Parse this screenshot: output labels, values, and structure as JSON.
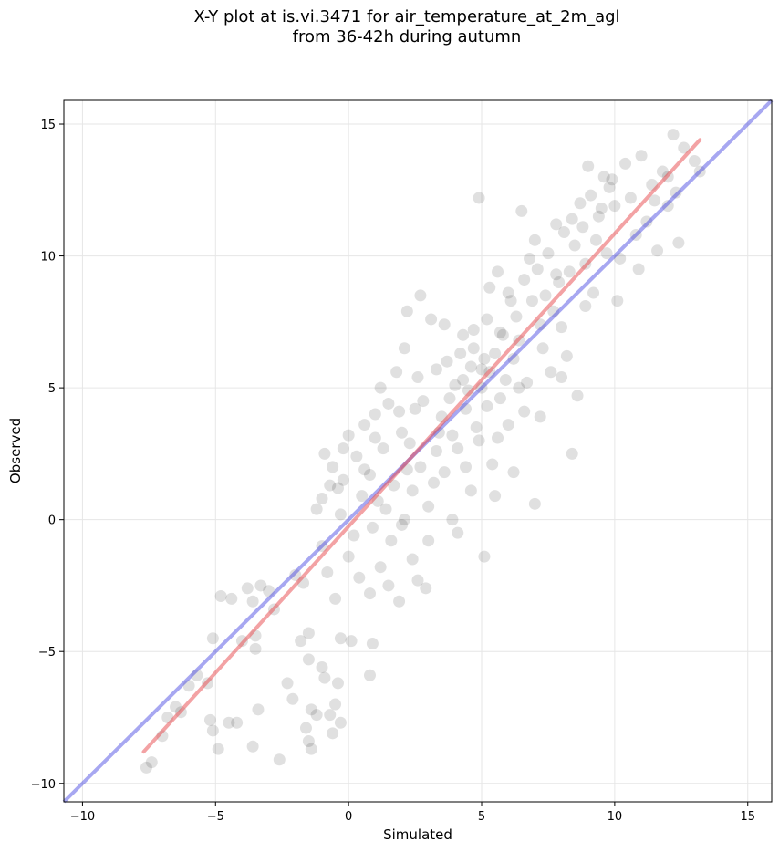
{
  "chart_data": {
    "type": "scatter",
    "title": "X-Y plot at is.vi.3471 for air_temperature_at_2m_agl",
    "subtitle": "from 36-42h during autumn",
    "xlabel": "Simulated",
    "ylabel": "Observed",
    "xlim": [
      -10.7,
      15.9
    ],
    "ylim": [
      -10.7,
      15.9
    ],
    "xticks": [
      -10,
      -5,
      0,
      5,
      10,
      15
    ],
    "yticks": [
      -10,
      -5,
      0,
      5,
      10,
      15
    ],
    "xtick_labels": [
      "−10",
      "−5",
      "0",
      "5",
      "10",
      "15"
    ],
    "ytick_labels": [
      "−10",
      "−5",
      "0",
      "5",
      "10",
      "15"
    ],
    "grid": true,
    "colors": {
      "points": "#000000",
      "fit_line": "#e8454a",
      "identity_line": "#3b3bdf"
    },
    "fit_line": {
      "x": [
        -7.7,
        13.2
      ],
      "y": [
        -8.8,
        14.4
      ]
    },
    "identity_line": {
      "x": [
        -10.7,
        15.9
      ],
      "y": [
        -10.7,
        15.9
      ]
    },
    "points": [
      [
        -7.6,
        -9.4
      ],
      [
        -7.4,
        -9.2
      ],
      [
        -7.0,
        -8.2
      ],
      [
        -6.8,
        -7.5
      ],
      [
        -6.5,
        -7.1
      ],
      [
        -6.3,
        -7.3
      ],
      [
        -6.0,
        -6.3
      ],
      [
        -5.7,
        -5.9
      ],
      [
        -5.3,
        -6.2
      ],
      [
        -5.2,
        -7.6
      ],
      [
        -5.1,
        -8.0
      ],
      [
        -4.9,
        -8.7
      ],
      [
        -5.1,
        -4.5
      ],
      [
        -4.8,
        -2.9
      ],
      [
        -4.4,
        -3.0
      ],
      [
        -4.5,
        -7.7
      ],
      [
        -4.2,
        -7.7
      ],
      [
        -4.0,
        -4.6
      ],
      [
        -3.8,
        -2.6
      ],
      [
        -3.6,
        -3.1
      ],
      [
        -3.5,
        -4.4
      ],
      [
        -3.5,
        -4.9
      ],
      [
        -3.4,
        -7.2
      ],
      [
        -3.6,
        -8.6
      ],
      [
        -3.3,
        -2.5
      ],
      [
        -3.0,
        -2.7
      ],
      [
        -2.8,
        -3.4
      ],
      [
        -2.6,
        -9.1
      ],
      [
        -2.3,
        -6.2
      ],
      [
        -2.1,
        -6.8
      ],
      [
        -2.0,
        -2.1
      ],
      [
        -1.7,
        -2.4
      ],
      [
        -1.8,
        -4.6
      ],
      [
        -1.5,
        -5.3
      ],
      [
        -1.4,
        -7.2
      ],
      [
        -1.6,
        -7.9
      ],
      [
        -1.5,
        -8.4
      ],
      [
        -1.4,
        -8.7
      ],
      [
        -1.2,
        -7.4
      ],
      [
        -1.0,
        -5.6
      ],
      [
        -0.9,
        -6.0
      ],
      [
        -0.7,
        -7.4
      ],
      [
        -0.5,
        -7.0
      ],
      [
        -0.4,
        -6.2
      ],
      [
        -0.3,
        -7.7
      ],
      [
        -0.6,
        -8.1
      ],
      [
        -0.8,
        -2.0
      ],
      [
        -0.5,
        -3.0
      ],
      [
        -0.3,
        -4.5
      ],
      [
        0.1,
        -4.6
      ],
      [
        0.8,
        -5.9
      ],
      [
        0.8,
        -2.8
      ],
      [
        0.9,
        -4.7
      ],
      [
        -1.5,
        -4.3
      ],
      [
        -1.0,
        -1.0
      ],
      [
        -1.0,
        0.8
      ],
      [
        -0.9,
        2.5
      ],
      [
        -0.6,
        2.0
      ],
      [
        -0.4,
        1.2
      ],
      [
        -0.2,
        2.7
      ],
      [
        0.0,
        3.2
      ],
      [
        0.3,
        2.4
      ],
      [
        0.6,
        3.6
      ],
      [
        0.8,
        1.7
      ],
      [
        1.0,
        4.0
      ],
      [
        1.3,
        2.7
      ],
      [
        1.1,
        0.7
      ],
      [
        1.5,
        4.4
      ],
      [
        1.8,
        5.6
      ],
      [
        2.0,
        3.3
      ],
      [
        2.1,
        6.5
      ],
      [
        2.2,
        7.9
      ],
      [
        2.6,
        5.4
      ],
      [
        2.7,
        8.5
      ],
      [
        2.8,
        4.5
      ],
      [
        3.1,
        7.6
      ],
      [
        3.3,
        5.7
      ],
      [
        3.6,
        7.4
      ],
      [
        2.4,
        -1.5
      ],
      [
        2.6,
        -2.3
      ],
      [
        2.9,
        -2.6
      ],
      [
        1.9,
        -3.1
      ],
      [
        1.5,
        -2.5
      ],
      [
        1.2,
        -1.8
      ],
      [
        3.6,
        1.8
      ],
      [
        3.9,
        3.2
      ],
      [
        4.0,
        5.1
      ],
      [
        4.2,
        6.3
      ],
      [
        4.4,
        4.2
      ],
      [
        4.6,
        5.8
      ],
      [
        4.7,
        7.2
      ],
      [
        4.8,
        3.5
      ],
      [
        4.9,
        12.2
      ],
      [
        5.0,
        5.0
      ],
      [
        5.1,
        6.1
      ],
      [
        5.2,
        4.3
      ],
      [
        5.3,
        8.8
      ],
      [
        5.4,
        2.1
      ],
      [
        5.5,
        0.9
      ],
      [
        5.6,
        9.4
      ],
      [
        5.7,
        7.1
      ],
      [
        5.9,
        5.3
      ],
      [
        6.0,
        3.6
      ],
      [
        6.1,
        8.3
      ],
      [
        6.2,
        1.8
      ],
      [
        6.4,
        6.8
      ],
      [
        6.5,
        11.7
      ],
      [
        6.6,
        4.1
      ],
      [
        6.8,
        9.9
      ],
      [
        7.0,
        10.6
      ],
      [
        7.0,
        0.6
      ],
      [
        7.2,
        7.4
      ],
      [
        7.4,
        8.5
      ],
      [
        7.6,
        5.6
      ],
      [
        7.8,
        11.2
      ],
      [
        7.9,
        9.0
      ],
      [
        8.0,
        7.3
      ],
      [
        8.2,
        6.2
      ],
      [
        8.4,
        2.5
      ],
      [
        8.5,
        10.4
      ],
      [
        8.6,
        4.7
      ],
      [
        8.7,
        12.0
      ],
      [
        8.9,
        9.7
      ],
      [
        9.0,
        13.4
      ],
      [
        9.2,
        8.6
      ],
      [
        9.4,
        11.5
      ],
      [
        9.6,
        13.0
      ],
      [
        9.7,
        10.1
      ],
      [
        9.8,
        12.6
      ],
      [
        10.0,
        11.9
      ],
      [
        10.2,
        9.9
      ],
      [
        10.4,
        13.5
      ],
      [
        10.6,
        12.2
      ],
      [
        10.8,
        10.8
      ],
      [
        11.0,
        13.8
      ],
      [
        11.2,
        11.3
      ],
      [
        11.4,
        12.7
      ],
      [
        11.6,
        10.2
      ],
      [
        11.8,
        13.2
      ],
      [
        12.0,
        11.9
      ],
      [
        12.2,
        14.6
      ],
      [
        12.4,
        10.5
      ],
      [
        12.6,
        14.1
      ],
      [
        13.0,
        13.6
      ],
      [
        13.2,
        13.2
      ],
      [
        12.3,
        12.4
      ],
      [
        -0.3,
        0.2
      ],
      [
        0.2,
        -0.6
      ],
      [
        0.5,
        0.9
      ],
      [
        0.9,
        -0.3
      ],
      [
        1.4,
        0.4
      ],
      [
        1.7,
        1.3
      ],
      [
        2.1,
        0.0
      ],
      [
        2.4,
        1.1
      ],
      [
        2.7,
        2.0
      ],
      [
        3.0,
        0.5
      ],
      [
        3.3,
        2.6
      ],
      [
        3.5,
        3.9
      ],
      [
        3.8,
        4.6
      ],
      [
        4.1,
        2.7
      ],
      [
        4.3,
        5.3
      ],
      [
        4.5,
        4.9
      ],
      [
        4.7,
        6.5
      ],
      [
        5.0,
        5.7
      ],
      [
        5.2,
        7.6
      ],
      [
        5.5,
        6.3
      ],
      [
        5.8,
        7.0
      ],
      [
        6.0,
        8.6
      ],
      [
        6.3,
        7.7
      ],
      [
        6.6,
        9.1
      ],
      [
        6.9,
        8.3
      ],
      [
        7.1,
        9.5
      ],
      [
        7.5,
        10.1
      ],
      [
        7.8,
        9.3
      ],
      [
        8.1,
        10.9
      ],
      [
        8.4,
        11.4
      ],
      [
        8.8,
        11.1
      ],
      [
        9.1,
        12.3
      ],
      [
        9.5,
        11.8
      ],
      [
        9.9,
        12.9
      ],
      [
        -0.2,
        1.5
      ],
      [
        0.0,
        -1.4
      ],
      [
        0.4,
        -2.2
      ],
      [
        1.0,
        3.1
      ],
      [
        1.6,
        -0.8
      ],
      [
        2.3,
        2.9
      ],
      [
        3.2,
        1.4
      ],
      [
        3.7,
        6.0
      ],
      [
        4.3,
        7.0
      ],
      [
        4.9,
        3.0
      ],
      [
        5.3,
        5.6
      ],
      [
        5.7,
        4.6
      ],
      [
        6.2,
        6.1
      ],
      [
        6.7,
        5.2
      ],
      [
        7.3,
        6.5
      ],
      [
        7.7,
        7.9
      ],
      [
        8.3,
        9.4
      ],
      [
        8.9,
        8.1
      ],
      [
        -1.2,
        0.4
      ],
      [
        -0.7,
        1.3
      ],
      [
        0.6,
        1.9
      ],
      [
        1.2,
        5.0
      ],
      [
        2.5,
        4.2
      ],
      [
        3.4,
        3.3
      ],
      [
        4.4,
        2.0
      ],
      [
        5.6,
        3.1
      ],
      [
        6.4,
        5.0
      ],
      [
        7.2,
        3.9
      ],
      [
        8.0,
        5.4
      ],
      [
        9.3,
        10.6
      ],
      [
        10.1,
        8.3
      ],
      [
        10.9,
        9.5
      ],
      [
        11.5,
        12.1
      ],
      [
        12.0,
        13.0
      ],
      [
        3.9,
        0.0
      ],
      [
        2.0,
        -0.2
      ],
      [
        4.6,
        1.1
      ],
      [
        5.1,
        -1.4
      ],
      [
        3.0,
        -0.8
      ],
      [
        4.1,
        -0.5
      ],
      [
        2.2,
        1.9
      ],
      [
        1.9,
        4.1
      ]
    ]
  }
}
